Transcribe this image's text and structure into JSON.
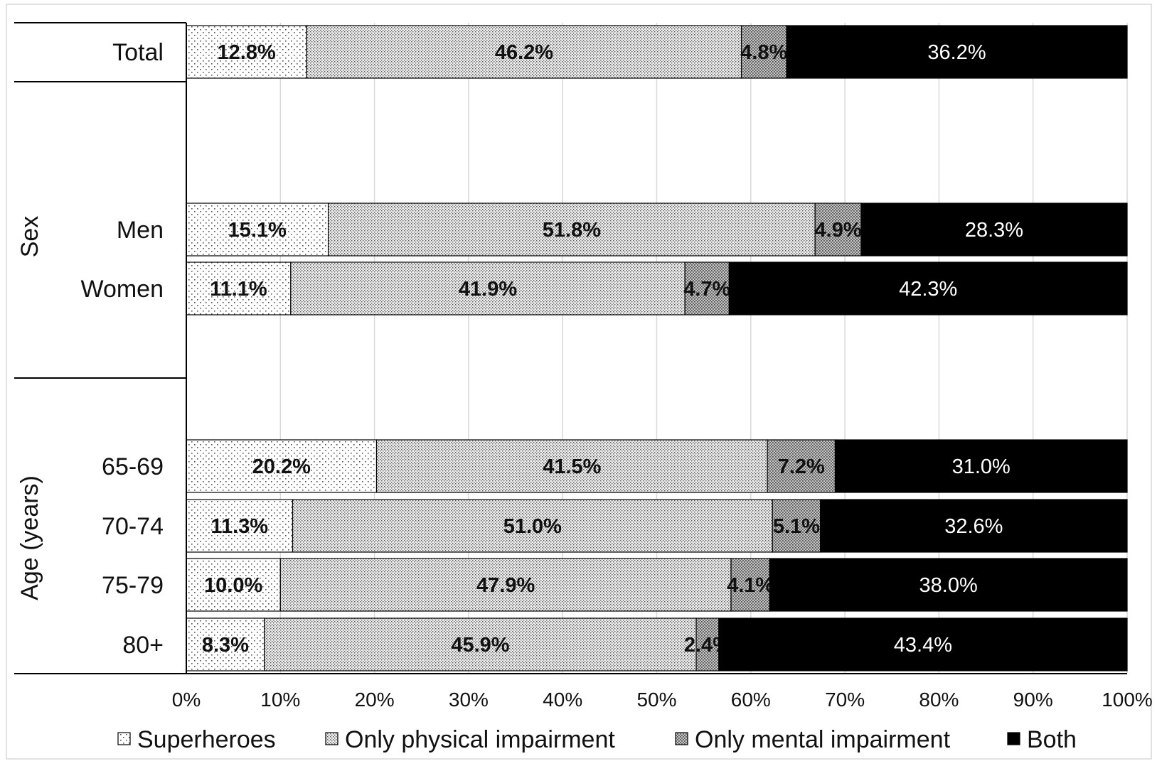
{
  "chart_data": {
    "type": "bar",
    "orientation": "horizontal",
    "stacked": "percent",
    "title": "",
    "xlabel": "",
    "ylabel": "",
    "xlim": [
      0,
      100
    ],
    "x_ticks": [
      "0%",
      "10%",
      "20%",
      "30%",
      "40%",
      "50%",
      "60%",
      "70%",
      "80%",
      "90%",
      "100%"
    ],
    "grid": "vertical",
    "legend_position": "bottom",
    "groups": [
      {
        "name": "",
        "categories": [
          "Total"
        ]
      },
      {
        "name": "Sex",
        "categories": [
          "Men",
          "Women"
        ]
      },
      {
        "name": "Age (years)",
        "categories": [
          "65-69",
          "70-74",
          "75-79",
          "80+"
        ]
      }
    ],
    "categories": [
      "Total",
      "Men",
      "Women",
      "65-69",
      "70-74",
      "75-79",
      "80+"
    ],
    "series": [
      {
        "name": "Superheroes",
        "values": [
          12.8,
          15.1,
          11.1,
          20.2,
          11.3,
          10.0,
          8.3
        ],
        "labels": [
          "12.8%",
          "15.1%",
          "11.1%",
          "20.2%",
          "11.3%",
          "10.0%",
          "8.3%"
        ],
        "pattern": "sparse-dots",
        "color": "#f4f4f4"
      },
      {
        "name": "Only physical impairment",
        "values": [
          46.2,
          51.8,
          41.9,
          41.5,
          51.0,
          47.9,
          45.9
        ],
        "labels": [
          "46.2%",
          "51.8%",
          "41.9%",
          "41.5%",
          "51.0%",
          "47.9%",
          "45.9%"
        ],
        "pattern": "dense-dots",
        "color": "#d2d2d2"
      },
      {
        "name": "Only mental impairment",
        "values": [
          4.8,
          4.9,
          4.7,
          7.2,
          5.1,
          4.1,
          2.4
        ],
        "labels": [
          "4.8%",
          "4.9%",
          "4.7%",
          "7.2%",
          "5.1%",
          "4.1%",
          "2.4%"
        ],
        "pattern": "dark-dots",
        "color": "#a9a9a9"
      },
      {
        "name": "Both",
        "values": [
          36.2,
          28.3,
          42.3,
          31.0,
          32.6,
          38.0,
          43.4
        ],
        "labels": [
          "36.2%",
          "28.3%",
          "42.3%",
          "31.0%",
          "32.6%",
          "38.0%",
          "43.4%"
        ],
        "pattern": "solid",
        "color": "#000000"
      }
    ]
  }
}
